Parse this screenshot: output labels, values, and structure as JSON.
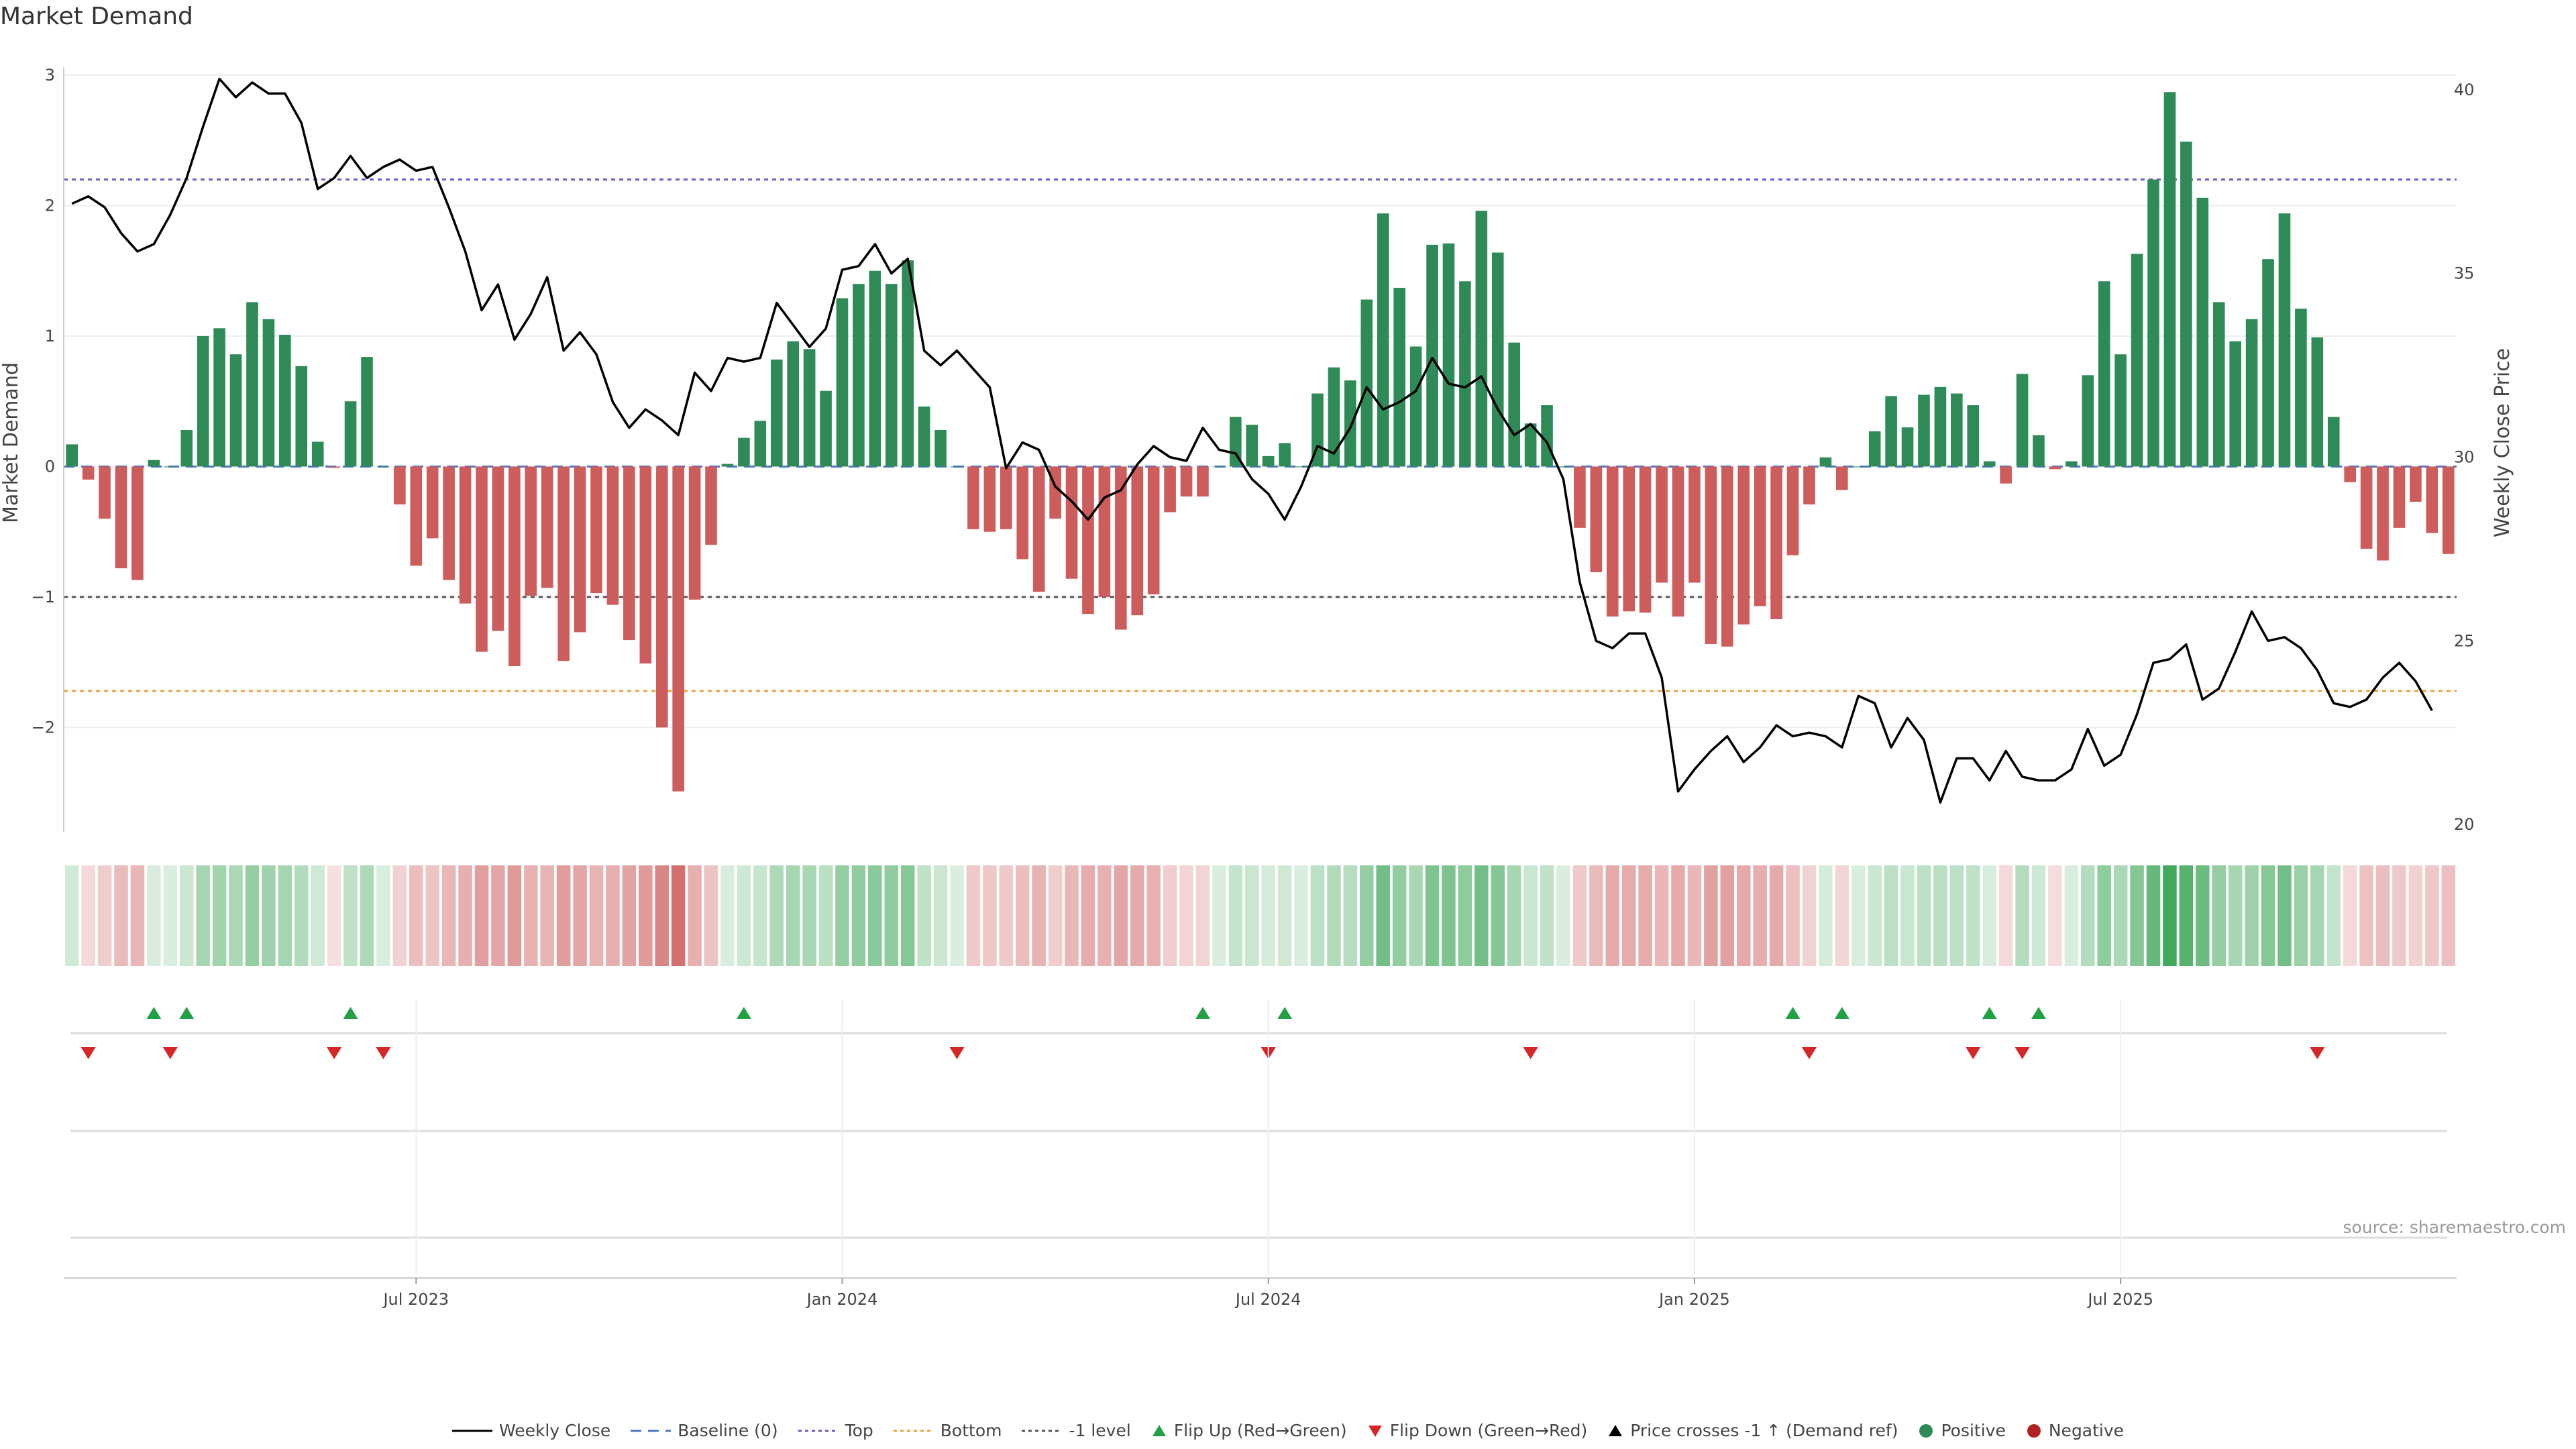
{
  "title": "Market Demand",
  "source": "source: sharemaestro.com",
  "colors": {
    "positive": "#2e8b57",
    "negative": "#cd5c5c",
    "price": "#000000",
    "top_line": "#6a5acd",
    "bottom_line": "#e8a33c",
    "minus1_line": "#555555",
    "flip_up": "#22a045",
    "flip_down": "#d62728",
    "heat_pos": "#2e9e4a",
    "heat_neg": "#c84b4b"
  },
  "chart_data": {
    "type": "bar",
    "title": "Market Demand",
    "ylabel": "Market Demand",
    "y2label": "Weekly Close Price",
    "ylim": [
      -2.8,
      3.0
    ],
    "y2lim": [
      19.8,
      40.4
    ],
    "yticks": [
      3,
      2,
      1,
      0,
      -1,
      -2
    ],
    "ytick_labels": [
      "3",
      "2",
      "1",
      "0",
      "−1",
      "−2"
    ],
    "y2ticks": [
      40,
      35,
      30,
      25,
      20
    ],
    "y2tick_labels": [
      "40",
      "35",
      "30",
      "25",
      "20"
    ],
    "reference_lines": {
      "top": 2.2,
      "bottom": -1.72,
      "minus1": -1.0,
      "baseline": 0
    },
    "x_ticks": [
      {
        "index": 21,
        "label": "Jul 2023"
      },
      {
        "index": 47,
        "label": "Jan 2024"
      },
      {
        "index": 73,
        "label": "Jul 2024"
      },
      {
        "index": 99,
        "label": "Jan 2025"
      },
      {
        "index": 125,
        "label": "Jul 2025"
      }
    ],
    "demand": [
      0.17,
      -0.1,
      -0.4,
      -0.78,
      -0.87,
      0.05,
      0.0,
      0.28,
      1.0,
      1.06,
      0.86,
      1.26,
      1.13,
      1.01,
      0.77,
      0.19,
      -0.01,
      0.5,
      0.84,
      0.0,
      -0.29,
      -0.76,
      -0.55,
      -0.87,
      -1.05,
      -1.42,
      -1.26,
      -1.53,
      -0.99,
      -0.93,
      -1.49,
      -1.27,
      -0.97,
      -1.06,
      -1.33,
      -1.51,
      -2.0,
      -2.49,
      -1.02,
      -0.6,
      0.02,
      0.22,
      0.35,
      0.82,
      0.96,
      0.9,
      0.58,
      1.29,
      1.4,
      1.5,
      1.4,
      1.58,
      0.46,
      0.28,
      0.0,
      -0.48,
      -0.5,
      -0.48,
      -0.71,
      -0.96,
      -0.4,
      -0.86,
      -1.13,
      -1.0,
      -1.25,
      -1.14,
      -0.98,
      -0.35,
      -0.23,
      -0.23,
      0.0,
      0.38,
      0.32,
      0.08,
      0.18,
      0.0,
      0.56,
      0.76,
      0.66,
      1.28,
      1.94,
      1.37,
      0.92,
      1.7,
      1.71,
      1.42,
      1.96,
      1.64,
      0.95,
      0.33,
      0.47,
      0.0,
      -0.47,
      -0.81,
      -1.15,
      -1.11,
      -1.12,
      -0.89,
      -1.15,
      -0.89,
      -1.36,
      -1.38,
      -1.21,
      -1.07,
      -1.17,
      -0.68,
      -0.29,
      0.07,
      -0.18,
      0.0,
      0.27,
      0.54,
      0.3,
      0.55,
      0.61,
      0.56,
      0.47,
      0.04,
      -0.13,
      0.71,
      0.24,
      -0.02,
      0.04,
      0.7,
      1.42,
      0.86,
      1.63,
      2.2,
      2.87,
      2.49,
      2.06,
      1.26,
      0.96,
      1.13,
      1.59,
      1.94,
      1.21,
      0.99,
      0.38,
      -0.12,
      -0.63,
      -0.72,
      -0.47,
      -0.27,
      -0.51,
      -0.67
    ],
    "price": [
      36.9,
      37.1,
      36.8,
      36.1,
      35.6,
      35.8,
      36.6,
      37.6,
      39.0,
      40.3,
      39.8,
      40.2,
      39.9,
      39.9,
      39.1,
      37.3,
      37.6,
      38.2,
      37.6,
      37.9,
      38.1,
      37.8,
      37.9,
      36.8,
      35.6,
      34.0,
      34.7,
      33.2,
      33.9,
      34.9,
      32.9,
      33.4,
      32.8,
      31.5,
      30.8,
      31.3,
      31.0,
      30.6,
      32.3,
      31.8,
      32.7,
      32.6,
      32.7,
      34.2,
      33.6,
      33.0,
      33.5,
      35.1,
      35.2,
      35.8,
      35.0,
      35.4,
      32.9,
      32.5,
      32.9,
      32.4,
      31.9,
      29.7,
      30.4,
      30.2,
      29.2,
      28.8,
      28.3,
      28.9,
      29.1,
      29.8,
      30.3,
      30.0,
      29.9,
      30.8,
      30.2,
      30.1,
      29.4,
      29.0,
      28.3,
      29.2,
      30.3,
      30.1,
      30.8,
      31.9,
      31.3,
      31.5,
      31.8,
      32.7,
      32.0,
      31.9,
      32.2,
      31.3,
      30.6,
      30.9,
      30.4,
      29.4,
      26.6,
      25.0,
      24.8,
      25.2,
      25.2,
      24.0,
      20.9,
      21.5,
      22.0,
      22.4,
      21.7,
      22.1,
      22.7,
      22.4,
      22.5,
      22.4,
      22.1,
      23.5,
      23.3,
      22.1,
      22.9,
      22.3,
      20.6,
      21.8,
      21.8,
      21.2,
      22.0,
      21.3,
      21.2,
      21.2,
      21.5,
      22.6,
      21.6,
      21.9,
      23.0,
      24.4,
      24.5,
      24.9,
      23.4,
      23.7,
      24.7,
      25.8,
      25.0,
      25.1,
      24.8,
      24.2,
      23.3,
      23.2,
      23.4,
      24.0,
      24.4,
      23.9,
      23.1
    ],
    "flip_up_indices": [
      5,
      7,
      17,
      41,
      69,
      74,
      105,
      108,
      117,
      120
    ],
    "flip_down_indices": [
      1,
      6,
      16,
      19,
      54,
      73,
      89,
      106,
      116,
      119,
      137
    ]
  },
  "legend": [
    {
      "key": "weekly-close",
      "label": "Weekly Close",
      "kind": "line",
      "color": "#000000",
      "dash": "none"
    },
    {
      "key": "baseline",
      "label": "Baseline (0)",
      "kind": "line",
      "color": "#4a78c2",
      "dash": "16,10"
    },
    {
      "key": "top",
      "label": "Top",
      "kind": "line",
      "color": "#6a5acd",
      "dash": "5,5"
    },
    {
      "key": "bottom",
      "label": "Bottom",
      "kind": "line",
      "color": "#e8a33c",
      "dash": "5,5"
    },
    {
      "key": "minus1",
      "label": "-1 level",
      "kind": "line",
      "color": "#555555",
      "dash": "5,5"
    },
    {
      "key": "flip-up",
      "label": "Flip Up (Red→Green)",
      "kind": "tri-up",
      "color": "#22a045"
    },
    {
      "key": "flip-down",
      "label": "Flip Down (Green→Red)",
      "kind": "tri-down",
      "color": "#d62728"
    },
    {
      "key": "price-cross",
      "label": "Price crosses -1 ↑ (Demand ref)",
      "kind": "tri-up",
      "color": "#000000"
    },
    {
      "key": "positive",
      "label": "Positive",
      "kind": "dot",
      "color": "#2e8b57"
    },
    {
      "key": "negative",
      "label": "Negative",
      "kind": "dot",
      "color": "#b22222"
    }
  ]
}
